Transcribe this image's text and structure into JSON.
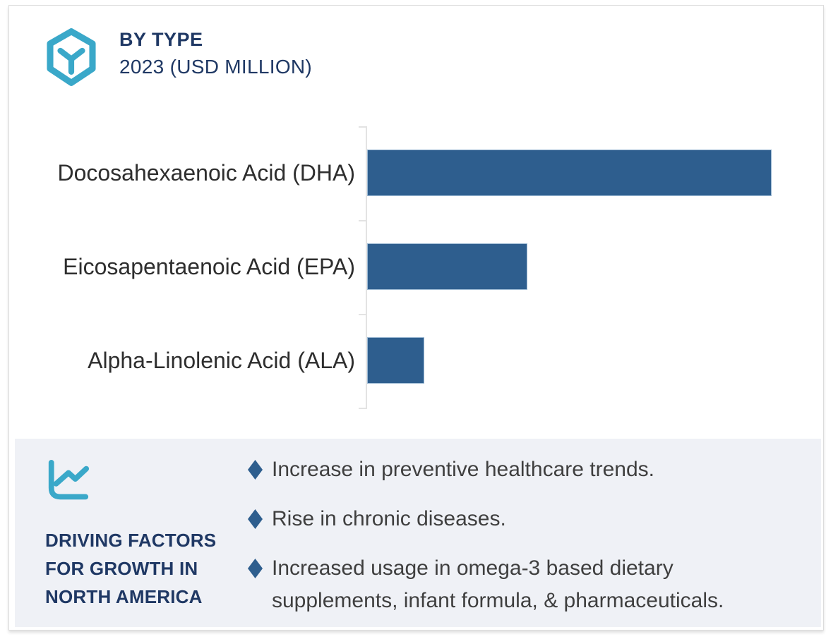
{
  "header": {
    "title": "BY TYPE",
    "subtitle": "2023 (USD MILLION)",
    "icon": "hexagon-cube-icon"
  },
  "colors": {
    "teal": "#3AA8C9",
    "navy": "#1F3864",
    "bar_blue": "#2E5E8E",
    "panel_bg": "#EFF1F6",
    "text_dark": "#3F3F3F",
    "axis_gray": "#E3E3E3",
    "card_border": "#DCDCDC"
  },
  "chart_data": {
    "type": "bar",
    "orientation": "horizontal",
    "title": "BY TYPE",
    "subtitle": "2023 (USD MILLION)",
    "categories": [
      "Docosahexaenoic Acid (DHA)",
      "Eicosapentaenoic Acid (EPA)",
      "Alpha-Linolenic Acid (ALA)"
    ],
    "values_relative_pct": [
      100,
      39.6,
      14.1
    ],
    "value_axis_labels_visible": false,
    "data_labels_visible": false,
    "grid": "off",
    "legend": "none",
    "bar_color": "#2E5E8E",
    "note": "No numeric axis or data labels are rendered; values are relative bar lengths measured from pixels (DHA = 100%)."
  },
  "driving_factors": {
    "icon": "line-chart-icon",
    "heading": "DRIVING FACTORS FOR GROWTH IN NORTH AMERICA",
    "bullet_marker": "diamond",
    "bullets": [
      "Increase in preventive healthcare trends.",
      "Rise in chronic diseases.",
      "Increased usage in omega-3 based dietary supplements, infant formula, & pharmaceuticals."
    ]
  }
}
